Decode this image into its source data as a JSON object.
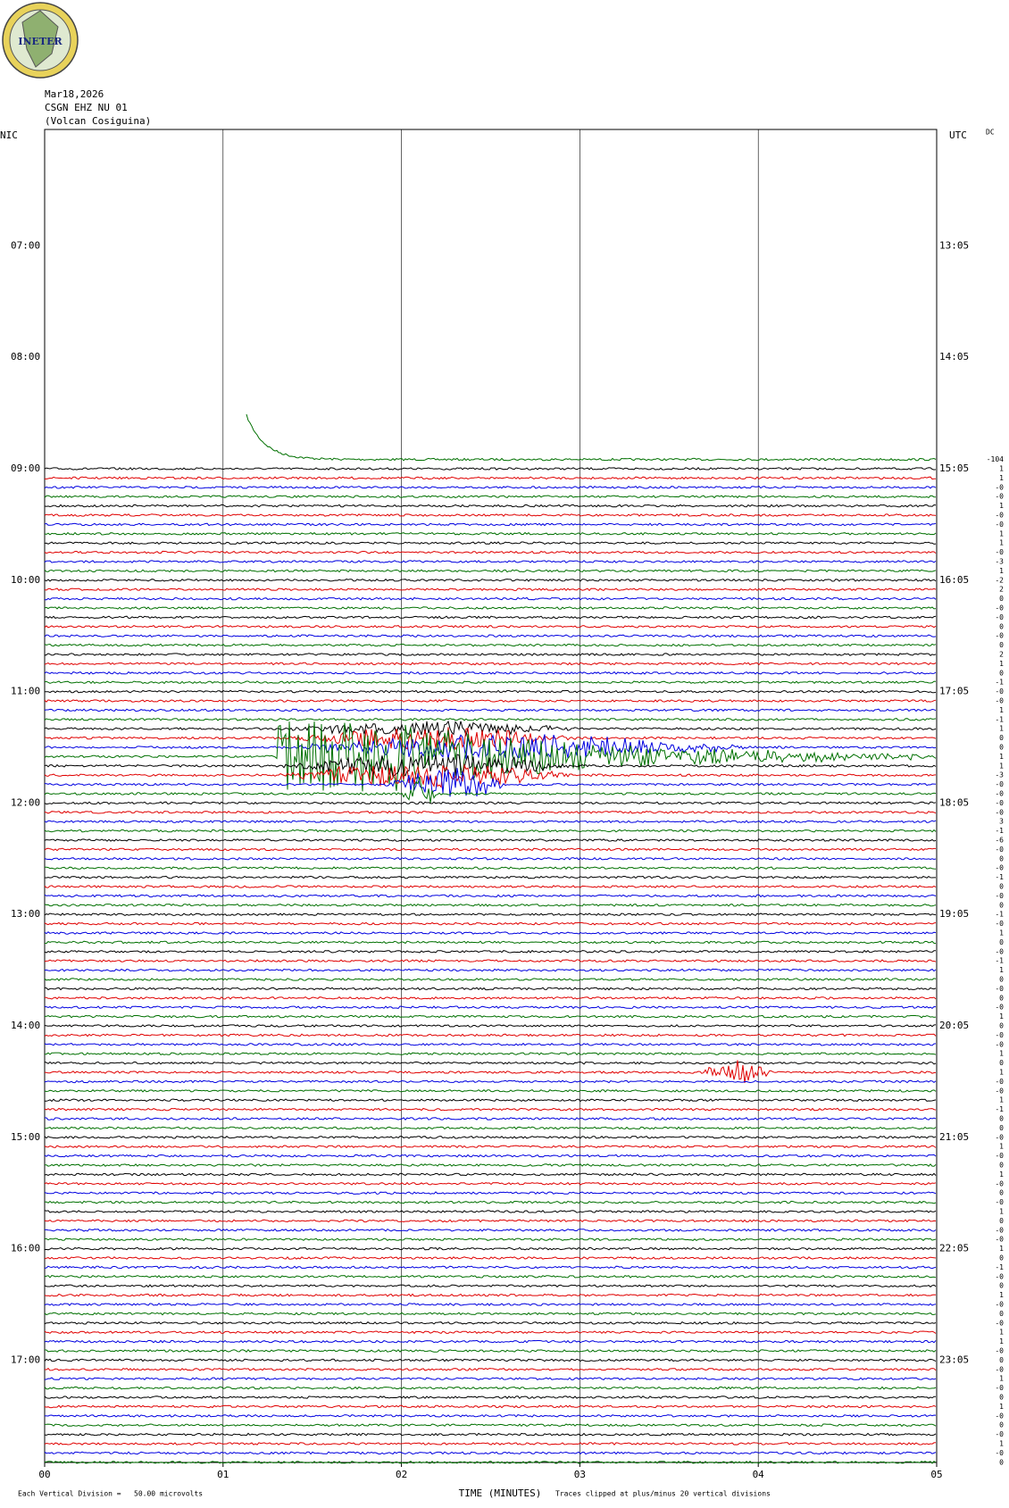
{
  "logo_text": "INETER",
  "chart_data": {
    "type": "helicorder",
    "title_lines": [
      "Mar18,2026",
      "CSGN EHZ NU 01",
      "(Volcan Cosiguina)"
    ],
    "left_zone": "NIC",
    "right_zone": "UTC",
    "dc_label": "DC",
    "left_hour_labels": [
      "07:00",
      "08:00",
      "09:00",
      "10:00",
      "11:00",
      "12:00",
      "13:00",
      "14:00",
      "15:00",
      "16:00",
      "17:00"
    ],
    "right_hour_labels": [
      "13:05",
      "14:05",
      "15:05",
      "16:05",
      "17:05",
      "18:05",
      "19:05",
      "20:05",
      "21:05",
      "22:05",
      "23:05"
    ],
    "trace_colors": [
      "#007000",
      "#000000",
      "#e00000",
      "#0000e0"
    ],
    "dc_offsets": [
      "-104",
      "1",
      "1",
      "-0",
      "-0",
      "1",
      "-0",
      "-0",
      "1",
      "1",
      "-0",
      "-3",
      "1",
      "-2",
      "2",
      "0",
      "-0",
      "-0",
      "0",
      "-0",
      "0",
      "2",
      "1",
      "0",
      "-1",
      "-0",
      "-0",
      "1",
      "-1",
      "1",
      "0",
      "0",
      "1",
      "1",
      "-3",
      "-0",
      "-0",
      "-0",
      "-0",
      "3",
      "-1",
      "-6",
      "-0",
      "0",
      "-0",
      "-1",
      "0",
      "-0",
      "0",
      "-1",
      "-0",
      "1",
      "0",
      "-0",
      "-1",
      "1",
      "0",
      "-0",
      "0",
      "-0",
      "1",
      "0",
      "-0",
      "-0",
      "1",
      "0",
      "1",
      "-0",
      "-0",
      "1",
      "-1",
      "0",
      "0",
      "-0",
      "1",
      "-0",
      "0",
      "1",
      "-0",
      "0",
      "-0",
      "1",
      "0",
      "-0",
      "-0",
      "1",
      "0",
      "-1",
      "-0",
      "0",
      "1",
      "-0",
      "0",
      "-0",
      "1",
      "1",
      "-0",
      "0",
      "-0",
      "1",
      "-0",
      "0",
      "1",
      "-0",
      "0",
      "-0",
      "1",
      "-0",
      "0"
    ],
    "xlim": [
      0,
      5
    ],
    "xticks": [
      {
        "value": 0,
        "label": "00"
      },
      {
        "value": 1,
        "label": "01"
      },
      {
        "value": 2,
        "label": "02"
      },
      {
        "value": 3,
        "label": "03"
      },
      {
        "value": 4,
        "label": "04"
      },
      {
        "value": 5,
        "label": "05"
      }
    ],
    "x_label": "TIME (MINUTES)",
    "scale_note": "Each Vertical Division =   50.00 microvolts",
    "clip_note": "Traces clipped at plus/minus 20 vertical divisions"
  }
}
